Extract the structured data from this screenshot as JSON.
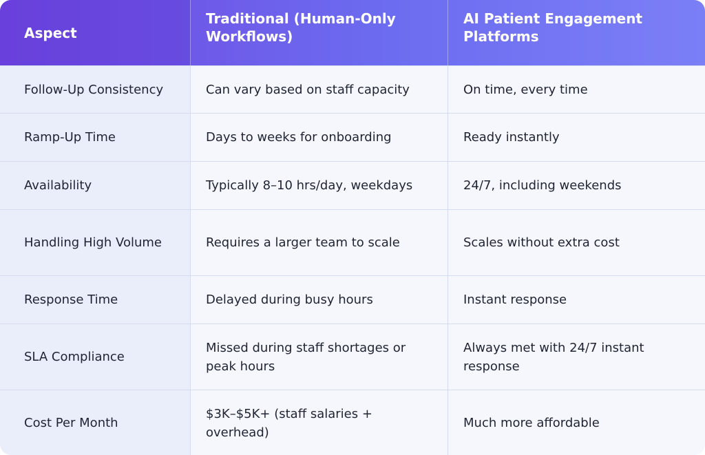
{
  "table": {
    "headers": [
      "Aspect",
      "Traditional (Human-Only Workflows)",
      "AI Patient Engagement Platforms"
    ],
    "rows": [
      {
        "aspect": "Follow-Up Consistency",
        "traditional": "Can vary based on staff capacity",
        "ai": "On time, every time"
      },
      {
        "aspect": "Ramp-Up Time",
        "traditional": "Days to weeks for onboarding",
        "ai": "Ready instantly"
      },
      {
        "aspect": "Availability",
        "traditional": "Typically 8–10 hrs/day, weekdays",
        "ai": "24/7, including weekends"
      },
      {
        "aspect": "Handling High Volume",
        "traditional": "Requires a larger team to scale",
        "ai": "Scales without extra cost"
      },
      {
        "aspect": "Response Time",
        "traditional": "Delayed during busy hours",
        "ai": "Instant response"
      },
      {
        "aspect": "SLA Compliance",
        "traditional": "Missed during staff shortages or peak hours",
        "ai": "Always met with 24/7 instant response"
      },
      {
        "aspect": "Cost Per Month",
        "traditional": "$3K–$5K+ (staff salaries + overhead)",
        "ai": "Much more affordable"
      }
    ]
  },
  "colors": {
    "header_gradient_start": "#7047e0",
    "header_gradient_end": "#7b7ff6",
    "row_background": "#f5f7fd",
    "aspect_column_background": "#eaedfa",
    "text": "#1f2433"
  }
}
